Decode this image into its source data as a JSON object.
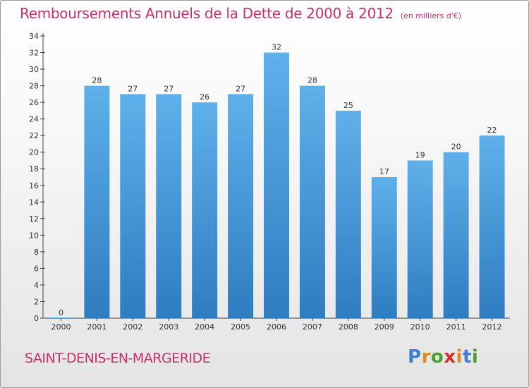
{
  "title": "Remboursements Annuels de la Dette de 2000 à 2012",
  "unit_note": "(en milliers d'€)",
  "commune": "SAINT-DENIS-EN-MARGERIDE",
  "logo": {
    "letters": [
      "P",
      "r",
      "o",
      "x",
      "i",
      "t",
      "i"
    ],
    "colors": [
      "#3f7fd0",
      "#e08a1e",
      "#4aa02c",
      "#d0302a",
      "#e08a1e",
      "#3f7fd0",
      "#4aa02c"
    ]
  },
  "colors": {
    "title": "#c4306a",
    "bar_top": "#5fb0ea",
    "bar_bottom": "#2f7cc0"
  },
  "chart_data": {
    "type": "bar",
    "categories": [
      "2000",
      "2001",
      "2002",
      "2003",
      "2004",
      "2005",
      "2006",
      "2007",
      "2008",
      "2009",
      "2010",
      "2011",
      "2012"
    ],
    "values": [
      0,
      28,
      27,
      27,
      26,
      27,
      32,
      28,
      25,
      17,
      19,
      20,
      22
    ],
    "ylim": [
      0,
      34
    ],
    "yticks": [
      0,
      2,
      4,
      6,
      8,
      10,
      12,
      14,
      16,
      18,
      20,
      22,
      24,
      26,
      28,
      30,
      32,
      34
    ],
    "grid": false,
    "data_labels": true
  }
}
